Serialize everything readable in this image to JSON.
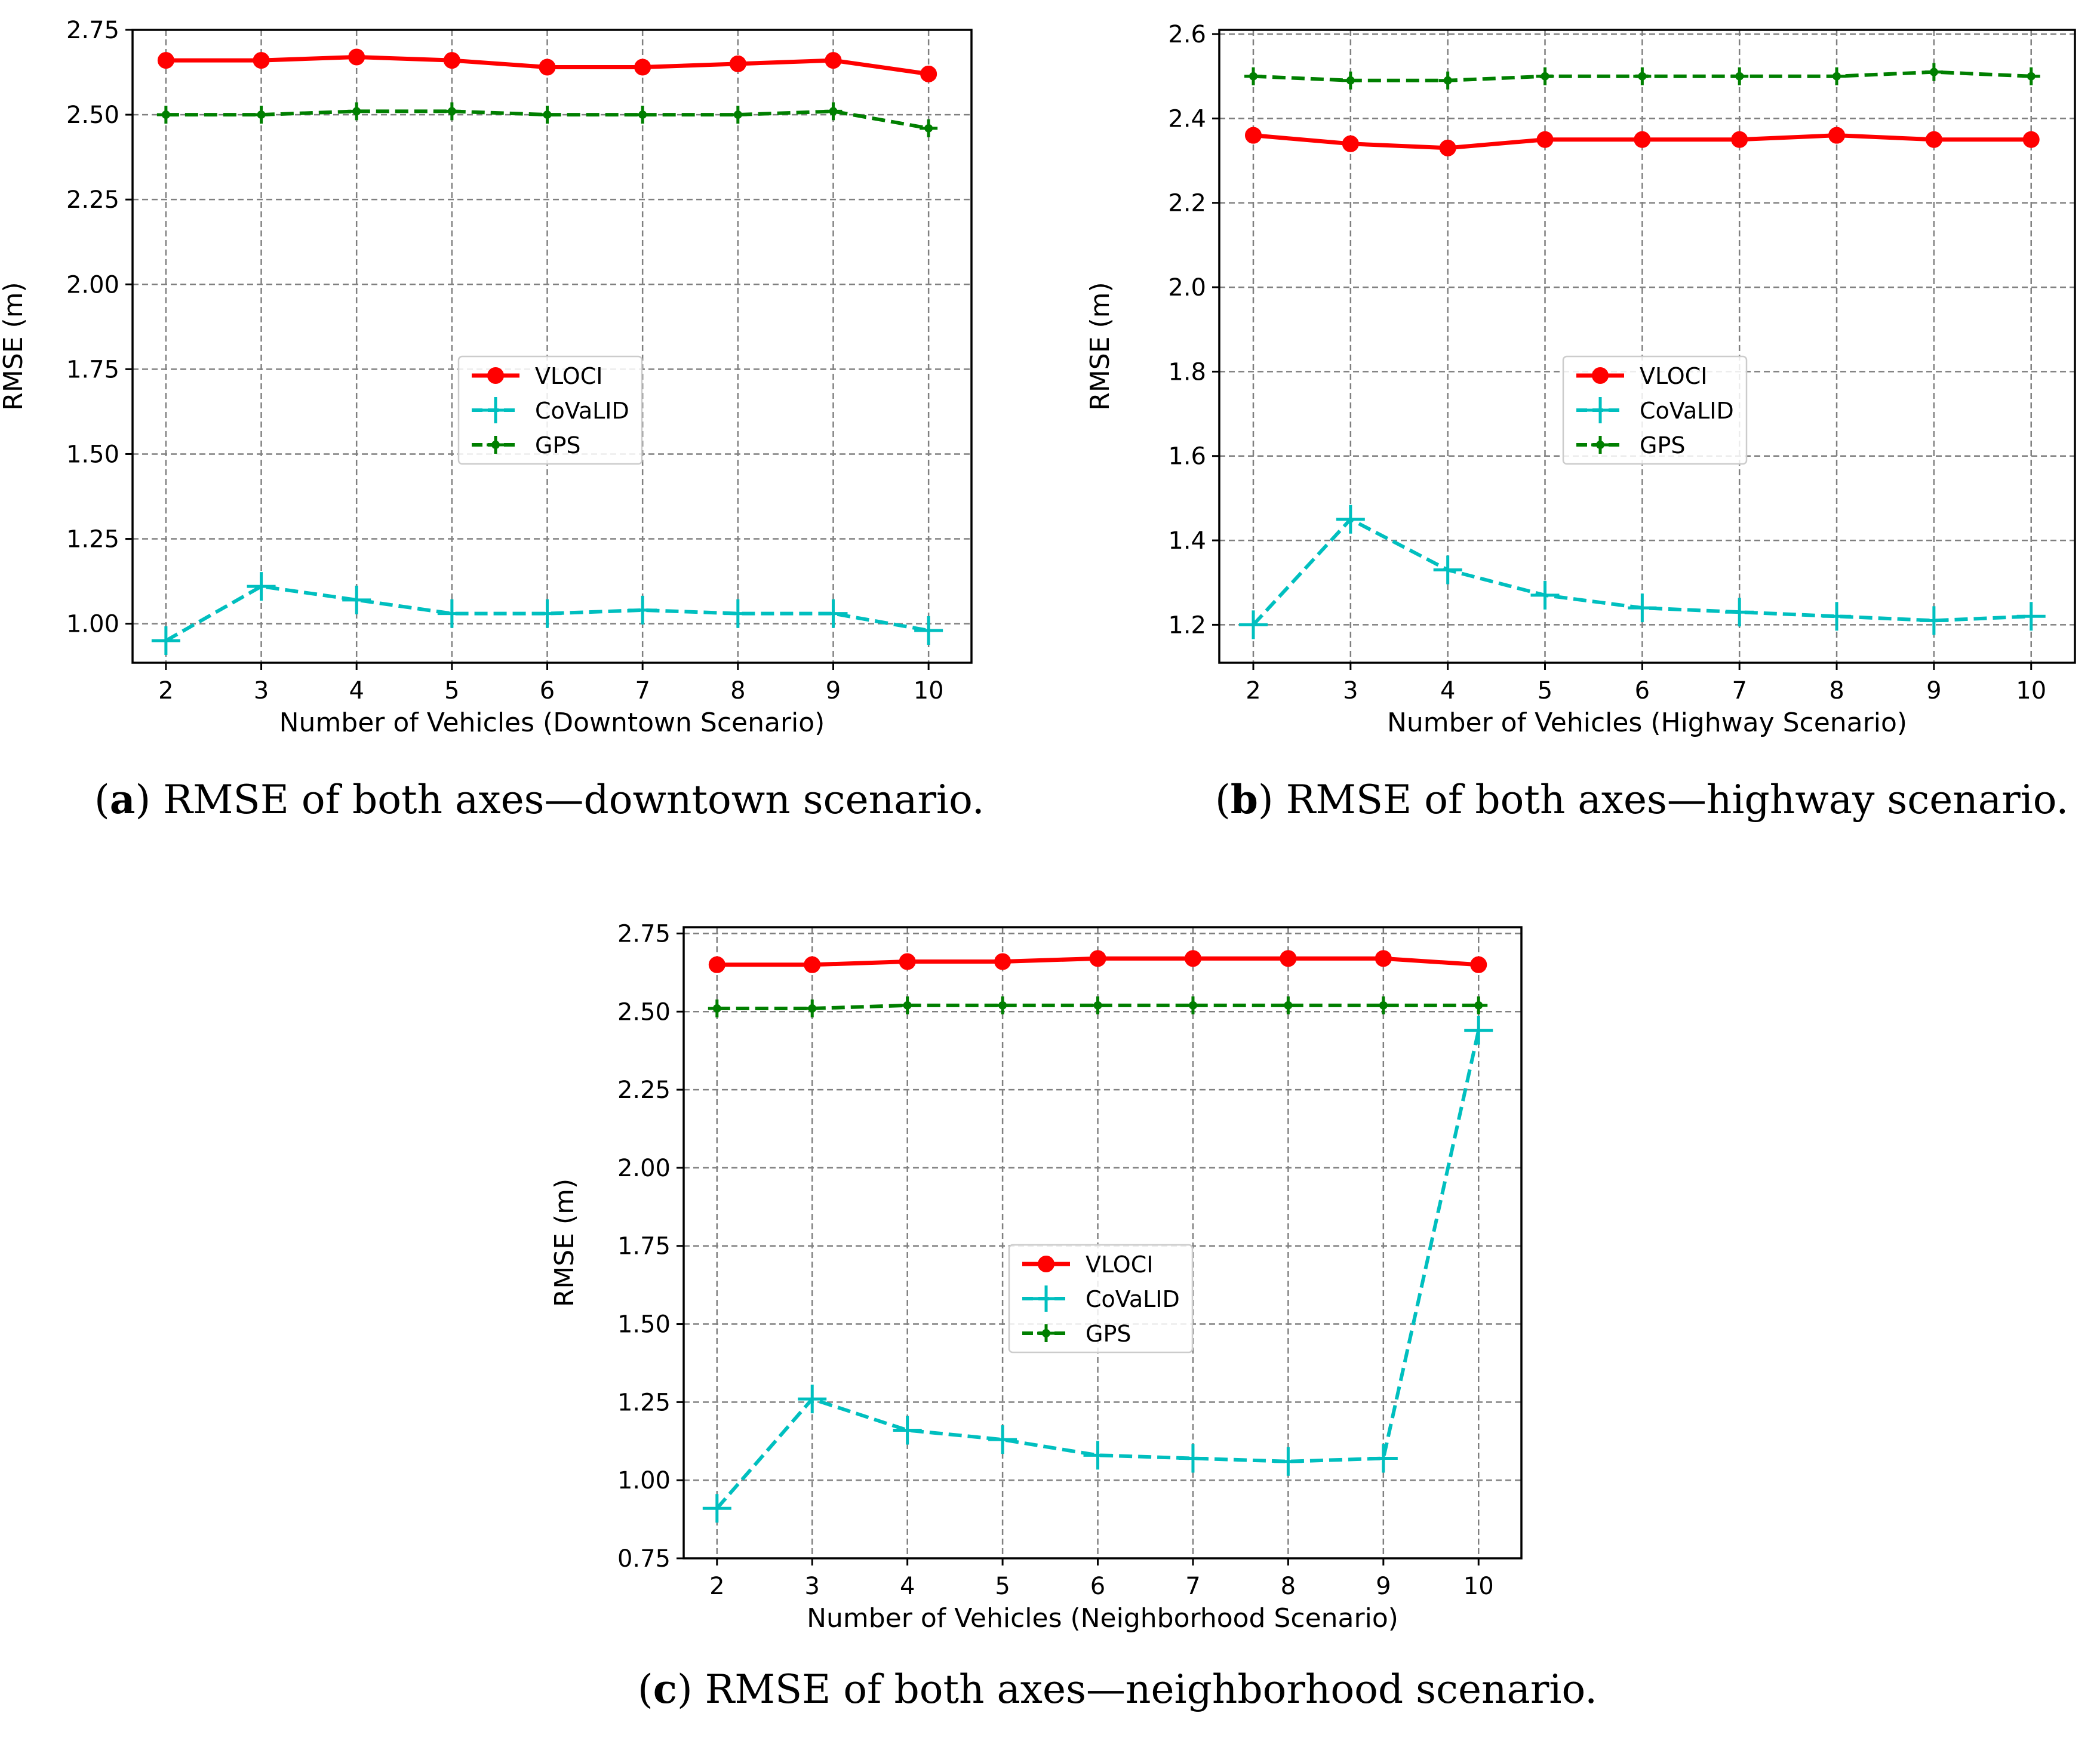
{
  "figures": [
    {
      "caption": {
        "letter": "a",
        "text": "RMSE of both axes—downtown scenario.",
        "open": "(",
        "close": ") "
      },
      "chart_data": {
        "type": "line",
        "title": "",
        "xlabel": "Number of Vehicles (Downtown Scenario)",
        "ylabel": "RMSE (m)",
        "x": [
          2,
          3,
          4,
          5,
          6,
          7,
          8,
          9,
          10
        ],
        "xlim": [
          1.65,
          10.45
        ],
        "ylim": [
          0.885,
          2.75
        ],
        "yticks": [
          1.0,
          1.25,
          1.5,
          1.75,
          2.0,
          2.25,
          2.5,
          2.75
        ],
        "ytick_labels": [
          "1.00",
          "1.25",
          "1.50",
          "1.75",
          "2.00",
          "2.25",
          "2.50",
          "2.75"
        ],
        "xtick_labels": [
          "2",
          "3",
          "4",
          "5",
          "6",
          "7",
          "8",
          "9",
          "10"
        ],
        "grid": true,
        "legend_position": "center",
        "series": [
          {
            "name": "VLOCI",
            "color": "#ff0000",
            "style": "solid",
            "marker": "circle",
            "values": [
              2.66,
              2.66,
              2.67,
              2.66,
              2.64,
              2.64,
              2.65,
              2.66,
              2.62
            ]
          },
          {
            "name": "CoVaLID",
            "color": "#00bfbf",
            "style": "dashed",
            "marker": "plus",
            "values": [
              0.95,
              1.11,
              1.07,
              1.03,
              1.03,
              1.04,
              1.03,
              1.03,
              0.98
            ]
          },
          {
            "name": "GPS",
            "color": "#007f00",
            "style": "dashed",
            "marker": "plus",
            "values": [
              2.5,
              2.5,
              2.51,
              2.51,
              2.5,
              2.5,
              2.5,
              2.51,
              2.46
            ]
          }
        ]
      }
    },
    {
      "caption": {
        "letter": "b",
        "text": "RMSE of both axes—highway scenario.",
        "open": "(",
        "close": ") "
      },
      "chart_data": {
        "type": "line",
        "title": "",
        "xlabel": "Number of Vehicles (Highway Scenario)",
        "ylabel": "RMSE (m)",
        "x": [
          2,
          3,
          4,
          5,
          6,
          7,
          8,
          9,
          10
        ],
        "xlim": [
          1.65,
          10.45
        ],
        "ylim": [
          1.11,
          2.61
        ],
        "yticks": [
          1.2,
          1.4,
          1.6,
          1.8,
          2.0,
          2.2,
          2.4,
          2.6
        ],
        "ytick_labels": [
          "1.2",
          "1.4",
          "1.6",
          "1.8",
          "2.0",
          "2.2",
          "2.4",
          "2.6"
        ],
        "xtick_labels": [
          "2",
          "3",
          "4",
          "5",
          "6",
          "7",
          "8",
          "9",
          "10"
        ],
        "grid": true,
        "legend_position": "center",
        "series": [
          {
            "name": "VLOCI",
            "color": "#ff0000",
            "style": "solid",
            "marker": "circle",
            "values": [
              2.36,
              2.34,
              2.33,
              2.35,
              2.35,
              2.35,
              2.36,
              2.35,
              2.35
            ]
          },
          {
            "name": "CoVaLID",
            "color": "#00bfbf",
            "style": "dashed",
            "marker": "plus",
            "values": [
              1.2,
              1.45,
              1.33,
              1.27,
              1.24,
              1.23,
              1.22,
              1.21,
              1.22
            ]
          },
          {
            "name": "GPS",
            "color": "#007f00",
            "style": "dashed",
            "marker": "plus",
            "values": [
              2.5,
              2.49,
              2.49,
              2.5,
              2.5,
              2.5,
              2.5,
              2.51,
              2.5
            ]
          }
        ]
      }
    },
    {
      "caption": {
        "letter": "c",
        "text": "RMSE of both axes—neighborhood scenario.",
        "open": "(",
        "close": ") "
      },
      "chart_data": {
        "type": "line",
        "title": "",
        "xlabel": "Number of Vehicles (Neighborhood Scenario)",
        "ylabel": "RMSE (m)",
        "x": [
          2,
          3,
          4,
          5,
          6,
          7,
          8,
          9,
          10
        ],
        "xlim": [
          1.65,
          10.45
        ],
        "ylim": [
          0.75,
          2.77
        ],
        "yticks": [
          0.75,
          1.0,
          1.25,
          1.5,
          1.75,
          2.0,
          2.25,
          2.5,
          2.75
        ],
        "ytick_labels": [
          "0.75",
          "1.00",
          "1.25",
          "1.50",
          "1.75",
          "2.00",
          "2.25",
          "2.50",
          "2.75"
        ],
        "xtick_labels": [
          "2",
          "3",
          "4",
          "5",
          "6",
          "7",
          "8",
          "9",
          "10"
        ],
        "grid": true,
        "legend_position": "center",
        "series": [
          {
            "name": "VLOCI",
            "color": "#ff0000",
            "style": "solid",
            "marker": "circle",
            "values": [
              2.65,
              2.65,
              2.66,
              2.66,
              2.67,
              2.67,
              2.67,
              2.67,
              2.65
            ]
          },
          {
            "name": "CoVaLID",
            "color": "#00bfbf",
            "style": "dashed",
            "marker": "plus",
            "values": [
              0.91,
              1.26,
              1.16,
              1.13,
              1.08,
              1.07,
              1.06,
              1.07,
              2.44
            ]
          },
          {
            "name": "GPS",
            "color": "#007f00",
            "style": "dashed",
            "marker": "plus",
            "values": [
              2.51,
              2.51,
              2.52,
              2.52,
              2.52,
              2.52,
              2.52,
              2.52,
              2.52
            ]
          }
        ]
      }
    }
  ]
}
